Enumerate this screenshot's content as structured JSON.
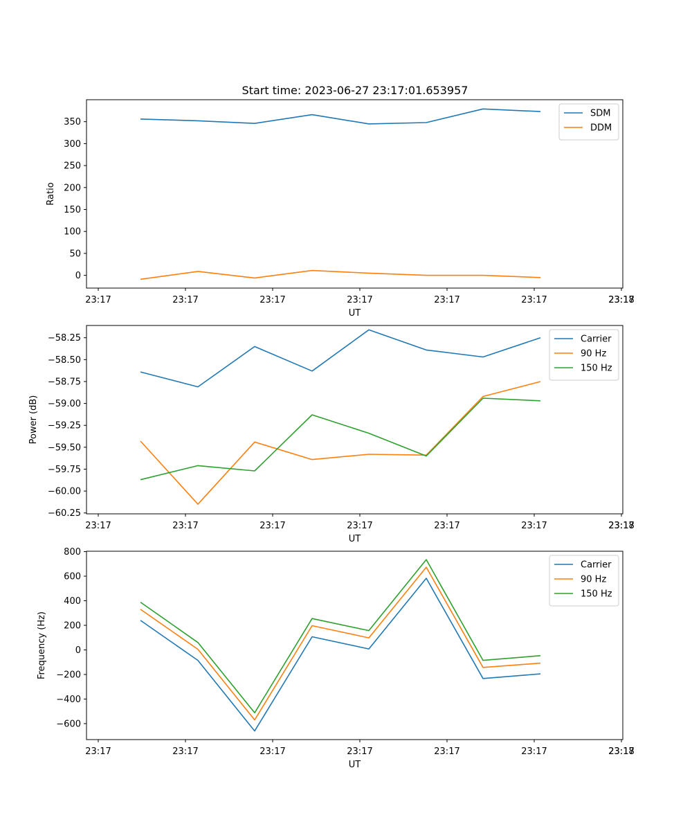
{
  "figure": {
    "title": "Start time: 2023-06-27 23:17:01.653957"
  },
  "colors": {
    "c0": "#1f77b4",
    "c1": "#ff7f0e",
    "c2": "#2ca02c"
  },
  "chart_data": [
    {
      "type": "line",
      "xlabel": "UT",
      "ylabel": "Ratio",
      "x_tick_labels": [
        "23:17",
        "23:17",
        "23:17",
        "23:17",
        "23:17",
        "23:17",
        "23:17"
      ],
      "y_ticks": [
        0,
        50,
        100,
        150,
        200,
        250,
        300,
        350
      ],
      "y_tick_labels": [
        "0",
        "50",
        "100",
        "150",
        "200",
        "250",
        "300",
        "350"
      ],
      "ylim": [
        -29,
        400
      ],
      "legend": "top-right",
      "series": [
        {
          "name": "SDM",
          "color": "#1f77b4",
          "values": [
            356,
            352,
            346,
            366,
            345,
            348,
            379,
            373
          ]
        },
        {
          "name": "DDM",
          "color": "#ff7f0e",
          "values": [
            -9,
            9,
            -6,
            11,
            5,
            0,
            0,
            -5
          ]
        }
      ]
    },
    {
      "type": "line",
      "xlabel": "UT",
      "ylabel": "Power (dB)",
      "x_tick_labels": [
        "23:17",
        "23:17",
        "23:17",
        "23:17",
        "23:17",
        "23:17",
        "23:17"
      ],
      "y_ticks": [
        -60.25,
        -60.0,
        -59.75,
        -59.5,
        -59.25,
        -59.0,
        -58.75,
        -58.5,
        -58.25
      ],
      "y_tick_labels": [
        "−60.25",
        "−60.00",
        "−59.75",
        "−59.50",
        "−59.25",
        "−59.00",
        "−58.75",
        "−58.50",
        "−58.25"
      ],
      "ylim": [
        -60.26,
        -58.11
      ],
      "legend": "top-right",
      "series": [
        {
          "name": "Carrier",
          "color": "#1f77b4",
          "values": [
            -58.64,
            -58.81,
            -58.35,
            -58.63,
            -58.16,
            -58.39,
            -58.47,
            -58.25
          ]
        },
        {
          "name": "90 Hz",
          "color": "#ff7f0e",
          "values": [
            -59.43,
            -60.15,
            -59.44,
            -59.64,
            -59.58,
            -59.59,
            -58.92,
            -58.75
          ]
        },
        {
          "name": "150 Hz",
          "color": "#2ca02c",
          "values": [
            -59.87,
            -59.71,
            -59.77,
            -59.13,
            -59.34,
            -59.6,
            -58.94,
            -58.97
          ]
        }
      ]
    },
    {
      "type": "line",
      "xlabel": "UT",
      "ylabel": "Frequency (Hz)",
      "x_tick_labels": [
        "23:17",
        "23:17",
        "23:17",
        "23:17",
        "23:17",
        "23:17",
        "23:17"
      ],
      "y_ticks": [
        -600,
        -400,
        -200,
        0,
        200,
        400,
        600,
        800
      ],
      "y_tick_labels": [
        "−600",
        "−400",
        "−200",
        "0",
        "200",
        "400",
        "600",
        "800"
      ],
      "ylim": [
        -730,
        803
      ],
      "legend": "top-right",
      "series": [
        {
          "name": "Carrier",
          "color": "#1f77b4",
          "values": [
            240,
            -85,
            -660,
            107,
            8,
            583,
            -233,
            -195
          ]
        },
        {
          "name": "90 Hz",
          "color": "#ff7f0e",
          "values": [
            330,
            5,
            -570,
            197,
            98,
            673,
            -143,
            -108
          ]
        },
        {
          "name": "150 Hz",
          "color": "#2ca02c",
          "values": [
            388,
            60,
            -512,
            255,
            157,
            735,
            -85,
            -47
          ]
        }
      ]
    }
  ],
  "shared_x": {
    "last_tick_label": "23:18"
  }
}
